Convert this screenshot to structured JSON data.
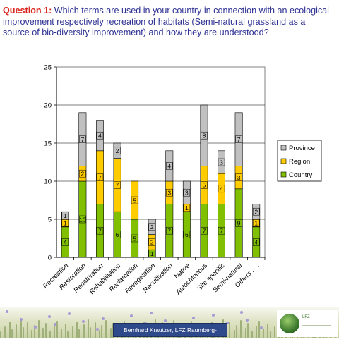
{
  "question": {
    "label": "Question 1:",
    "text": "Which terms are used in your country in connection with an ecological improvement respectively recreation of habitats (Semi-natural grassland as a source of bio-diversity improvement) and how they are understood?"
  },
  "colors": {
    "province": "#c0c0c0",
    "region": "#ffcc00",
    "country": "#80c000",
    "question_label": "#d9241c",
    "question_text": "#2e3192",
    "credit_bg": "#2f4a8a"
  },
  "chart_data": {
    "type": "bar",
    "stacked": true,
    "categories": [
      "Recreation",
      "Restoration",
      "Renaturation",
      "Rehabilitation",
      "Reclamation",
      "Revegetation",
      "Recultivation",
      "Native",
      "Autochtonous",
      "Site specific",
      "Semi-natural",
      "Others . . ."
    ],
    "series": [
      {
        "name": "Country",
        "color": "#80c000",
        "values": [
          4,
          10,
          7,
          6,
          5,
          1,
          7,
          6,
          7,
          7,
          9,
          4
        ]
      },
      {
        "name": "Region",
        "color": "#ffcc00",
        "values": [
          1,
          2,
          7,
          7,
          5,
          2,
          3,
          1,
          5,
          4,
          3,
          1
        ]
      },
      {
        "name": "Province",
        "color": "#c0c0c0",
        "values": [
          1,
          7,
          4,
          2,
          0,
          2,
          4,
          3,
          8,
          3,
          7,
          2
        ]
      }
    ],
    "ylim": [
      0,
      25
    ],
    "yticks": [
      0,
      5,
      10,
      15,
      20,
      25
    ],
    "grid": true,
    "legend_position": "right",
    "legend_order": [
      "Province",
      "Region",
      "Country"
    ],
    "data_labels": true
  },
  "footer": {
    "credit": "Bernhard Krautzer, LFZ Raumberg-Gumpenstein",
    "logo_letters": "LFZ"
  }
}
